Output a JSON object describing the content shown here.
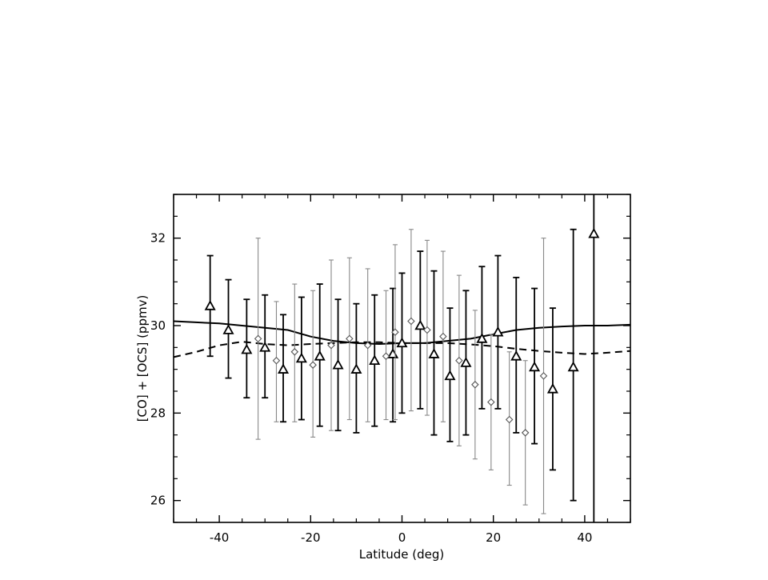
{
  "chart_data": {
    "type": "scatter",
    "xlabel": "Latitude  (deg)",
    "ylabel": "[CO] + [OCS]  (ppmv)",
    "xlim": [
      -50,
      50
    ],
    "ylim": [
      25.5,
      33.0
    ],
    "x_ticks": [
      -40,
      -20,
      0,
      20,
      40
    ],
    "x_tick_labels": [
      "-40",
      "-20",
      "0",
      "20",
      "40"
    ],
    "y_ticks": [
      26,
      28,
      30,
      32
    ],
    "y_tick_labels": [
      "26",
      "28",
      "30",
      "32"
    ],
    "grid": false,
    "legend": "none",
    "series": [
      {
        "marker": "triangle",
        "color": "#000000",
        "points": [
          {
            "x": -42,
            "y": 30.45,
            "err_low": 29.3,
            "err_high": 31.6
          },
          {
            "x": -38,
            "y": 29.9,
            "err_low": 28.8,
            "err_high": 31.05
          },
          {
            "x": -34,
            "y": 29.45,
            "err_low": 28.35,
            "err_high": 30.6
          },
          {
            "x": -30,
            "y": 29.5,
            "err_low": 28.35,
            "err_high": 30.7
          },
          {
            "x": -26,
            "y": 29.0,
            "err_low": 27.8,
            "err_high": 30.25
          },
          {
            "x": -22,
            "y": 29.25,
            "err_low": 27.85,
            "err_high": 30.65
          },
          {
            "x": -18,
            "y": 29.3,
            "err_low": 27.7,
            "err_high": 30.95
          },
          {
            "x": -14,
            "y": 29.1,
            "err_low": 27.6,
            "err_high": 30.6
          },
          {
            "x": -10,
            "y": 29.0,
            "err_low": 27.55,
            "err_high": 30.5
          },
          {
            "x": -6,
            "y": 29.2,
            "err_low": 27.7,
            "err_high": 30.7
          },
          {
            "x": -2,
            "y": 29.35,
            "err_low": 27.8,
            "err_high": 30.85
          },
          {
            "x": 0,
            "y": 29.6,
            "err_low": 28.0,
            "err_high": 31.2
          },
          {
            "x": 4,
            "y": 30.0,
            "err_low": 28.1,
            "err_high": 31.7
          },
          {
            "x": 7,
            "y": 29.35,
            "err_low": 27.5,
            "err_high": 31.25
          },
          {
            "x": 10.5,
            "y": 28.85,
            "err_low": 27.35,
            "err_high": 30.4
          },
          {
            "x": 14,
            "y": 29.15,
            "err_low": 27.5,
            "err_high": 30.8
          },
          {
            "x": 17.5,
            "y": 29.7,
            "err_low": 28.1,
            "err_high": 31.35
          },
          {
            "x": 21,
            "y": 29.85,
            "err_low": 28.1,
            "err_high": 31.6
          },
          {
            "x": 25,
            "y": 29.3,
            "err_low": 27.55,
            "err_high": 31.1
          },
          {
            "x": 29,
            "y": 29.05,
            "err_low": 27.3,
            "err_high": 30.85
          },
          {
            "x": 33,
            "y": 28.55,
            "err_low": 26.7,
            "err_high": 30.4
          },
          {
            "x": 37.5,
            "y": 29.05,
            "err_low": 26.0,
            "err_high": 32.2
          },
          {
            "x": 42,
            "y": 32.1,
            "err_low": 25.5,
            "err_high": 33.0
          }
        ]
      },
      {
        "marker": "diamond",
        "color": "#888888",
        "points": [
          {
            "x": -31.5,
            "y": 29.7,
            "err_low": 27.4,
            "err_high": 32.0
          },
          {
            "x": -27.5,
            "y": 29.2,
            "err_low": 27.8,
            "err_high": 30.55
          },
          {
            "x": -23.5,
            "y": 29.4,
            "err_low": 27.8,
            "err_high": 30.95
          },
          {
            "x": -19.5,
            "y": 29.1,
            "err_low": 27.45,
            "err_high": 30.8
          },
          {
            "x": -15.5,
            "y": 29.55,
            "err_low": 27.6,
            "err_high": 31.5
          },
          {
            "x": -11.5,
            "y": 29.7,
            "err_low": 27.85,
            "err_high": 31.55
          },
          {
            "x": -7.5,
            "y": 29.55,
            "err_low": 27.8,
            "err_high": 31.3
          },
          {
            "x": -3.5,
            "y": 29.3,
            "err_low": 27.85,
            "err_high": 30.8
          },
          {
            "x": -1.5,
            "y": 29.85,
            "err_low": 27.85,
            "err_high": 31.85
          },
          {
            "x": 2,
            "y": 30.1,
            "err_low": 28.05,
            "err_high": 32.2
          },
          {
            "x": 5.5,
            "y": 29.9,
            "err_low": 27.95,
            "err_high": 31.95
          },
          {
            "x": 9,
            "y": 29.75,
            "err_low": 27.8,
            "err_high": 31.7
          },
          {
            "x": 12.5,
            "y": 29.2,
            "err_low": 27.25,
            "err_high": 31.15
          },
          {
            "x": 16,
            "y": 28.65,
            "err_low": 26.95,
            "err_high": 30.35
          },
          {
            "x": 19.5,
            "y": 28.25,
            "err_low": 26.7,
            "err_high": 29.8
          },
          {
            "x": 23.5,
            "y": 27.85,
            "err_low": 26.35,
            "err_high": 29.4
          },
          {
            "x": 27,
            "y": 27.55,
            "err_low": 25.9,
            "err_high": 29.2
          },
          {
            "x": 31,
            "y": 28.85,
            "err_low": 25.7,
            "err_high": 32.0
          }
        ]
      },
      {
        "style": "solid",
        "color": "#000000",
        "x": [
          -50,
          -40,
          -30,
          -25,
          -20,
          -15,
          -10,
          -5,
          0,
          5,
          10,
          15,
          20,
          25,
          30,
          35,
          40,
          45,
          50
        ],
        "y": [
          30.1,
          30.05,
          29.95,
          29.9,
          29.75,
          29.65,
          29.6,
          29.58,
          29.6,
          29.6,
          29.65,
          29.7,
          29.8,
          29.9,
          29.95,
          29.98,
          30.0,
          30.0,
          30.02
        ]
      },
      {
        "style": "dashed",
        "color": "#000000",
        "x": [
          -50,
          -45,
          -40,
          -35,
          -30,
          -25,
          -20,
          -15,
          -10,
          -5,
          0,
          5,
          10,
          15,
          20,
          25,
          30,
          35,
          40,
          45,
          50
        ],
        "y": [
          29.28,
          29.4,
          29.55,
          29.63,
          29.58,
          29.55,
          29.58,
          29.6,
          29.62,
          29.62,
          29.6,
          29.6,
          29.6,
          29.57,
          29.53,
          29.47,
          29.42,
          29.38,
          29.35,
          29.38,
          29.42
        ]
      }
    ]
  }
}
